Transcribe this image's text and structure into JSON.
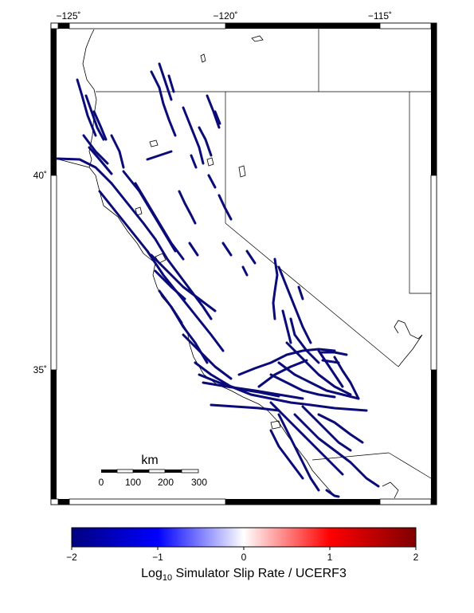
{
  "map": {
    "lon_labels": [
      "−125˚",
      "−120˚",
      "−115˚"
    ],
    "lat_labels": [
      "40˚",
      "35˚"
    ],
    "scale_bar": {
      "unit": "km",
      "ticks": [
        "0",
        "100",
        "200",
        "300"
      ]
    },
    "colors": {
      "fault": "#0a0a78",
      "coast": "#000000",
      "frame": "#000000"
    }
  },
  "colorbar": {
    "ticks": [
      "−2",
      "−1",
      "0",
      "1",
      "2"
    ],
    "title_main": "Log",
    "title_sub": "10",
    "title_rest": " Simulator Slip Rate / UCERF3",
    "colors": [
      "#00007f",
      "#0000ff",
      "#ffffff",
      "#ff0000",
      "#7f0000"
    ]
  }
}
